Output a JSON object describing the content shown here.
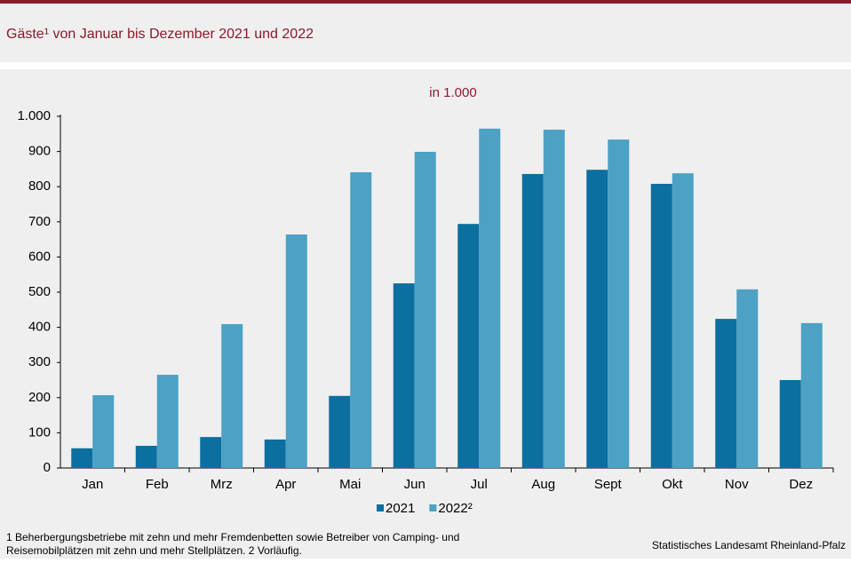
{
  "chart_data": {
    "type": "bar",
    "title": "Gäste¹ von Januar bis Dezember 2021 und 2022",
    "subtitle": "in 1.000",
    "categories": [
      "Jan",
      "Feb",
      "Mrz",
      "Apr",
      "Mai",
      "Jun",
      "Jul",
      "Aug",
      "Sept",
      "Okt",
      "Nov",
      "Dez"
    ],
    "series": [
      {
        "name": "2021",
        "color": "#0b6f9f",
        "values": [
          56,
          63,
          88,
          81,
          205,
          525,
          694,
          836,
          848,
          808,
          424,
          250
        ]
      },
      {
        "name": "2022²",
        "color": "#4ca1c5",
        "values": [
          207,
          265,
          409,
          664,
          841,
          899,
          965,
          962,
          934,
          838,
          508,
          412
        ]
      }
    ],
    "ylim": [
      0,
      1000
    ],
    "yticks": [
      0,
      100,
      200,
      300,
      400,
      500,
      600,
      700,
      800,
      900,
      {
        "value": 1000,
        "label": "1.000"
      }
    ],
    "footnotes": [
      "1 Beherbergungsbetriebe  mit zehn und mehr Fremdenbetten  sowie Betreiber von Camping-  und",
      "Reisemobilplätzen  mit zehn und mehr Stellplätzen. 2 Vorläufig."
    ],
    "source": "Statistisches Landesamt Rheinland-Pfalz"
  }
}
